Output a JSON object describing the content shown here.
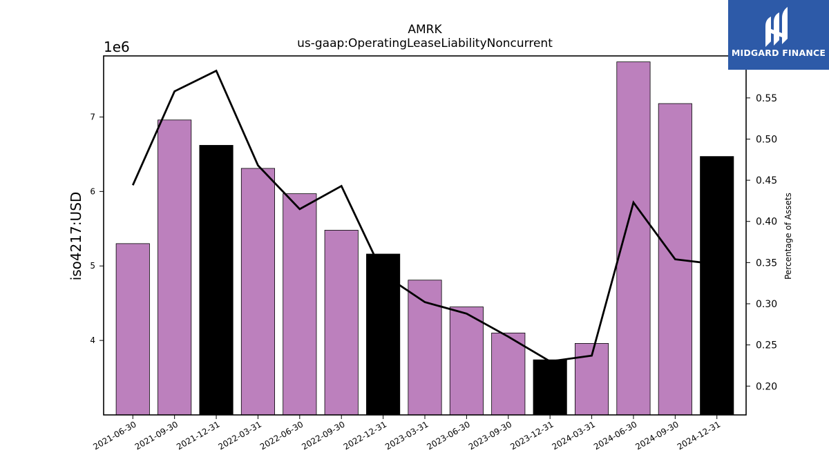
{
  "chart_data": {
    "type": "bar",
    "title": "AMRK",
    "subtitle": "us-gaap:OperatingLeaseLiabilityNoncurrent",
    "ylabel": "iso4217:USD",
    "y2label": "Percentage of Assets",
    "scale_label": "1e6",
    "categories": [
      "2021-06-30",
      "2021-09-30",
      "2021-12-31",
      "2022-03-31",
      "2022-06-30",
      "2022-09-30",
      "2022-12-31",
      "2023-03-31",
      "2023-06-30",
      "2023-09-30",
      "2023-12-31",
      "2024-03-31",
      "2024-06-30",
      "2024-09-30",
      "2024-12-31"
    ],
    "values": [
      5.3,
      6.96,
      6.62,
      6.31,
      5.97,
      5.48,
      5.16,
      4.81,
      4.45,
      4.1,
      3.74,
      3.96,
      7.74,
      7.18,
      6.47
    ],
    "bar_colors": [
      "#bc80bd",
      "#bc80bd",
      "#000000",
      "#bc80bd",
      "#bc80bd",
      "#bc80bd",
      "#000000",
      "#bc80bd",
      "#bc80bd",
      "#bc80bd",
      "#000000",
      "#bc80bd",
      "#bc80bd",
      "#bc80bd",
      "#000000"
    ],
    "line_series": {
      "name": "",
      "values": [
        0.444,
        0.558,
        0.583,
        0.468,
        0.415,
        0.443,
        0.336,
        0.302,
        0.288,
        0.26,
        0.23,
        0.237,
        0.423,
        0.354,
        0.348
      ],
      "color": "#000000"
    },
    "ylim": [
      3.0,
      7.82
    ],
    "y2lim": [
      0.165,
      0.601
    ],
    "yticks": [
      4,
      5,
      6,
      7
    ],
    "y2ticks": [
      0.2,
      0.25,
      0.3,
      0.35,
      0.4,
      0.45,
      0.5,
      0.55
    ],
    "grid": false
  },
  "logo": {
    "text": "MIDGARD FINANCE",
    "bg_color": "#2d5aa8"
  }
}
